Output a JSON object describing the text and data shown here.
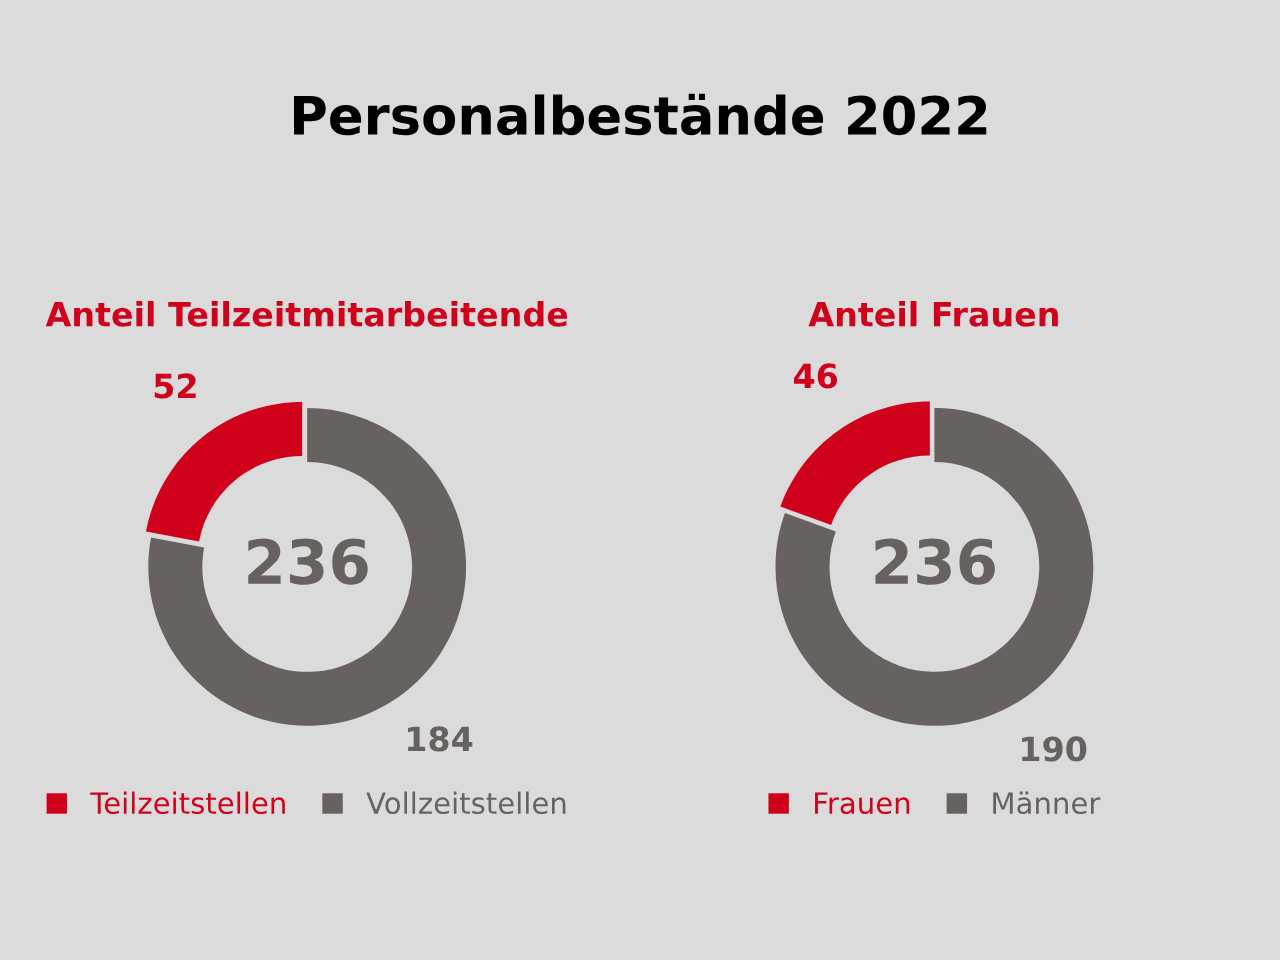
{
  "chart_data": [
    {
      "type": "donut",
      "title": "Anteil Teilzeitmitarbeitende",
      "annotations": [
        "Personalbestände 2022",
        "236"
      ],
      "categories": [
        "Teilzeitstellen",
        "Vollzeitstellen"
      ],
      "values": [
        52,
        184
      ],
      "colors": [
        "#d0021b",
        "#67625f"
      ],
      "data_labels": true,
      "legend": "bottom"
    },
    {
      "type": "donut",
      "title": "Anteil Frauen",
      "annotations": [
        "236"
      ],
      "categories": [
        "Frauen",
        "Männer"
      ],
      "values": [
        46,
        190
      ],
      "colors": [
        "#d0021b",
        "#67625f"
      ],
      "data_labels": true,
      "legend": "bottom"
    }
  ]
}
